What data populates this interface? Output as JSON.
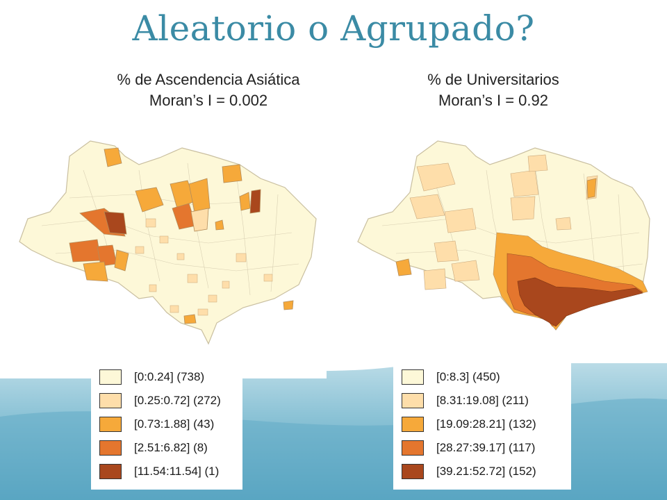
{
  "slide": {
    "title": "Aleatorio o Agrupado?"
  },
  "maps": {
    "left": {
      "title": "% de Ascendencia Asiática",
      "statistic": "Moran’s I = 0.002",
      "legend": [
        {
          "label": "[0:0.24] (738)",
          "color": "#fdf8d8"
        },
        {
          "label": "[0.25:0.72] (272)",
          "color": "#fedeaa"
        },
        {
          "label": "[0.73:1.88] (43)",
          "color": "#f6a93a"
        },
        {
          "label": "[2.51:6.82] (8)",
          "color": "#e4762e"
        },
        {
          "label": "[11.54:11.54] (1)",
          "color": "#a9471d"
        }
      ]
    },
    "right": {
      "title": "% de Universitarios",
      "statistic": "Moran’s I = 0.92",
      "legend": [
        {
          "label": "[0:8.3] (450)",
          "color": "#fdf8d8"
        },
        {
          "label": "[8.31:19.08] (211)",
          "color": "#fedeaa"
        },
        {
          "label": "[19.09:28.21] (132)",
          "color": "#f6a93a"
        },
        {
          "label": "[28.27:39.17] (117)",
          "color": "#e4762e"
        },
        {
          "label": "[39.21:52.72] (152)",
          "color": "#a9471d"
        }
      ]
    }
  },
  "colors": {
    "title": "#3b8ba5",
    "background_wave": "#5fa9c4"
  }
}
